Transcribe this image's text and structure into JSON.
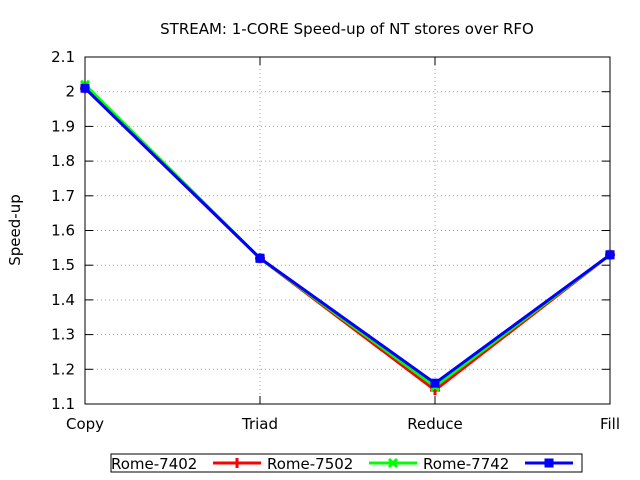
{
  "chart_data": {
    "type": "line",
    "title": "STREAM: 1-CORE Speed-up of NT stores over RFO",
    "xlabel": "",
    "ylabel": "Speed-up",
    "categories": [
      "Copy",
      "Triad",
      "Reduce",
      "Fill"
    ],
    "ylim": [
      1.1,
      2.1
    ],
    "yticks": [
      "1.1",
      "1.2",
      "1.3",
      "1.4",
      "1.5",
      "1.6",
      "1.7",
      "1.8",
      "1.9",
      "2",
      "2.1"
    ],
    "grid": true,
    "legend_position": "bottom",
    "series": [
      {
        "name": "Rome-7402",
        "values": [
          2.01,
          1.52,
          1.14,
          1.53
        ],
        "color": "#ff0000",
        "marker": "plus"
      },
      {
        "name": "Rome-7502",
        "values": [
          2.02,
          1.52,
          1.15,
          1.53
        ],
        "color": "#00ff00",
        "marker": "cross"
      },
      {
        "name": "Rome-7742",
        "values": [
          2.01,
          1.52,
          1.16,
          1.53
        ],
        "color": "#0000ff",
        "marker": "square"
      }
    ]
  }
}
